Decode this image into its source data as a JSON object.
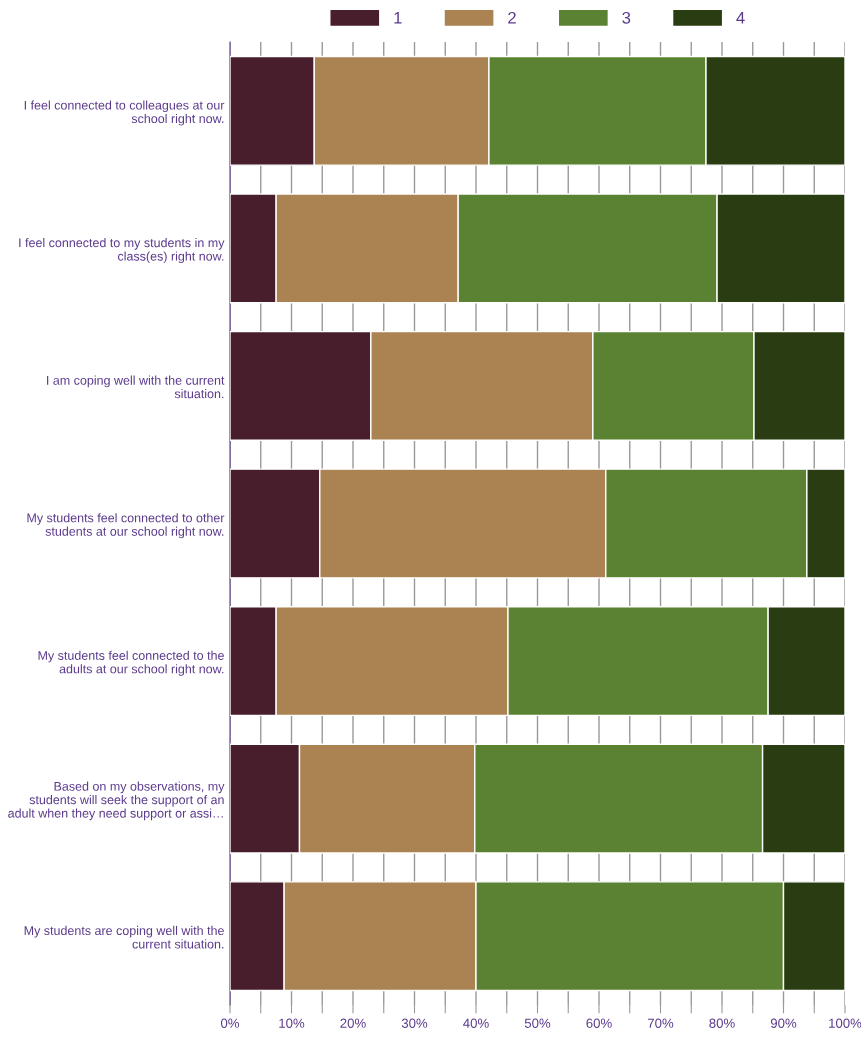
{
  "chart_data": {
    "type": "bar",
    "orientation": "horizontal",
    "stacked": true,
    "categories": [
      "I feel connected to colleagues at our\nschool right now.",
      "I feel connected to my students in my\nclass(es) right now.",
      "I am coping well with the current\nsituation.",
      "My students feel connected to other\nstudents at our school right now.",
      "My students feel connected to the\nadults at our school right now.",
      "Based on my observations, my\nstudents will seek the support of an\nadult when they need support or assi…",
      "My students are coping well with the\ncurrent situation."
    ],
    "series": [
      {
        "name": "1",
        "color": "#481e2d",
        "values": [
          13.7,
          7.5,
          22.9,
          14.6,
          7.5,
          11.3,
          8.8
        ]
      },
      {
        "name": "2",
        "color": "#ab8251",
        "values": [
          28.4,
          29.6,
          36.1,
          46.5,
          37.7,
          28.5,
          31.2
        ]
      },
      {
        "name": "3",
        "color": "#5b8233",
        "values": [
          35.3,
          42.1,
          26.2,
          32.7,
          42.3,
          46.8,
          50.0
        ]
      },
      {
        "name": "4",
        "color": "#2a3d12",
        "values": [
          22.6,
          20.8,
          14.8,
          6.2,
          12.5,
          13.4,
          10.0
        ]
      }
    ],
    "xlim": [
      0,
      100
    ],
    "xticks": [
      {
        "value": 0,
        "label": "0%"
      },
      {
        "value": 5,
        "label": null
      },
      {
        "value": 10,
        "label": "10%"
      },
      {
        "value": 15,
        "label": null
      },
      {
        "value": 20,
        "label": "20%"
      },
      {
        "value": 25,
        "label": null
      },
      {
        "value": 30,
        "label": "30%"
      },
      {
        "value": 35,
        "label": null
      },
      {
        "value": 40,
        "label": "40%"
      },
      {
        "value": 45,
        "label": null
      },
      {
        "value": 50,
        "label": "50%"
      },
      {
        "value": 55,
        "label": null
      },
      {
        "value": 60,
        "label": "60%"
      },
      {
        "value": 65,
        "label": null
      },
      {
        "value": 70,
        "label": "70%"
      },
      {
        "value": 75,
        "label": null
      },
      {
        "value": 80,
        "label": "80%"
      },
      {
        "value": 85,
        "label": null
      },
      {
        "value": 90,
        "label": "90%"
      },
      {
        "value": 95,
        "label": null
      },
      {
        "value": 100,
        "label": "100%"
      }
    ],
    "grid": "x",
    "legend": "top"
  }
}
